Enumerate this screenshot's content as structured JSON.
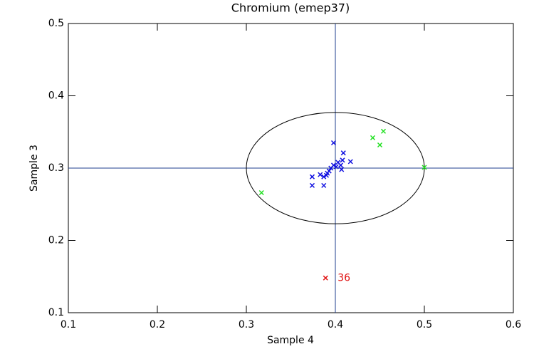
{
  "chart_data": {
    "type": "scatter",
    "title": "Chromium (emep37)",
    "x_label": "Sample 4",
    "y_label": "Sample 3",
    "xlim": [
      0.1,
      0.6
    ],
    "xticks": [
      0.1,
      0.2,
      0.3,
      0.4,
      0.5,
      0.6
    ],
    "ylim": [
      0.1,
      0.5
    ],
    "yticks": [
      0.1,
      0.2,
      0.3,
      0.4,
      0.5
    ],
    "reference_lines": {
      "x": 0.4,
      "y": 0.3,
      "color": "#1f3f8f"
    },
    "ellipse": {
      "cx": 0.4,
      "cy": 0.3,
      "rx": 0.1,
      "ry": 0.077,
      "color": "#000000"
    },
    "series": [
      {
        "color": "#1010e0",
        "x": [
          0.398,
          0.409,
          0.408,
          0.417,
          0.403,
          0.398,
          0.401,
          0.395,
          0.393,
          0.391,
          0.39,
          0.387,
          0.383,
          0.374,
          0.374,
          0.387,
          0.406,
          0.407
        ],
        "values": [
          0.335,
          0.321,
          0.311,
          0.309,
          0.308,
          0.304,
          0.302,
          0.3,
          0.296,
          0.293,
          0.29,
          0.288,
          0.291,
          0.288,
          0.276,
          0.276,
          0.304,
          0.298
        ]
      },
      {
        "color": "#20e020",
        "x": [
          0.317,
          0.442,
          0.454,
          0.45,
          0.5
        ],
        "values": [
          0.266,
          0.342,
          0.351,
          0.332,
          0.301
        ]
      },
      {
        "color": "#e01010",
        "x": [
          0.389
        ],
        "values": [
          0.148
        ],
        "point_labels": [
          "36"
        ]
      }
    ]
  }
}
